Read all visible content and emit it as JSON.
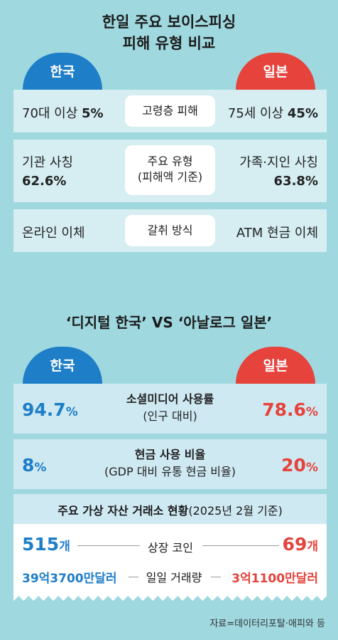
{
  "header": {
    "title_line1": "한일 주요 보이스피싱",
    "title_line2": "피해 유형 비교"
  },
  "section1": {
    "korea_label": "한국",
    "japan_label": "일본",
    "rows": [
      {
        "korea_text": "70대 이상 ",
        "korea_value": "5%",
        "center": "고령층 피해",
        "japan_text": "75세 이상 ",
        "japan_value": "45%"
      },
      {
        "korea_text": "기관 사칭",
        "korea_value": "62.6%",
        "center_line1": "주요 유형",
        "center_line2": "(피해액 기준)",
        "japan_text": "가족·지인 사칭",
        "japan_value": "63.8%"
      },
      {
        "korea_text": "온라인 이체",
        "center": "갈취 방식",
        "japan_text": "ATM 현금 이체"
      }
    ]
  },
  "section2": {
    "title": "‘디지털 한국’ VS ‘아날로그 일본’",
    "korea_label": "한국",
    "japan_label": "일본",
    "rows": [
      {
        "korea_value": "94.7",
        "korea_unit": "%",
        "center_bold": "소셜미디어 사용률",
        "center_sub": "(인구 대비)",
        "japan_value": "78.6",
        "japan_unit": "%"
      },
      {
        "korea_value": "8",
        "korea_unit": "%",
        "center_bold": "현금 사용 비율",
        "center_sub": "(GDP 대비 유통 현금 비율)",
        "japan_value": "20",
        "japan_unit": "%"
      }
    ],
    "exchange": {
      "heading_bold": "주요 가상 자산 거래소 현황",
      "heading_sub": "(2025년 2월 기준)",
      "listed": {
        "korea_value": "515",
        "korea_unit": "개",
        "label": "상장 코인",
        "japan_value": "69",
        "japan_unit": "개"
      },
      "volume": {
        "korea_value": "39억3700만달러",
        "label": "일일 거래량",
        "japan_value": "3억1100만달러"
      }
    }
  },
  "source": "자료=데이터리포탈·애피와 등",
  "colors": {
    "background": "#9fd8df",
    "korea": "#1e7ec8",
    "japan": "#e5433c"
  }
}
